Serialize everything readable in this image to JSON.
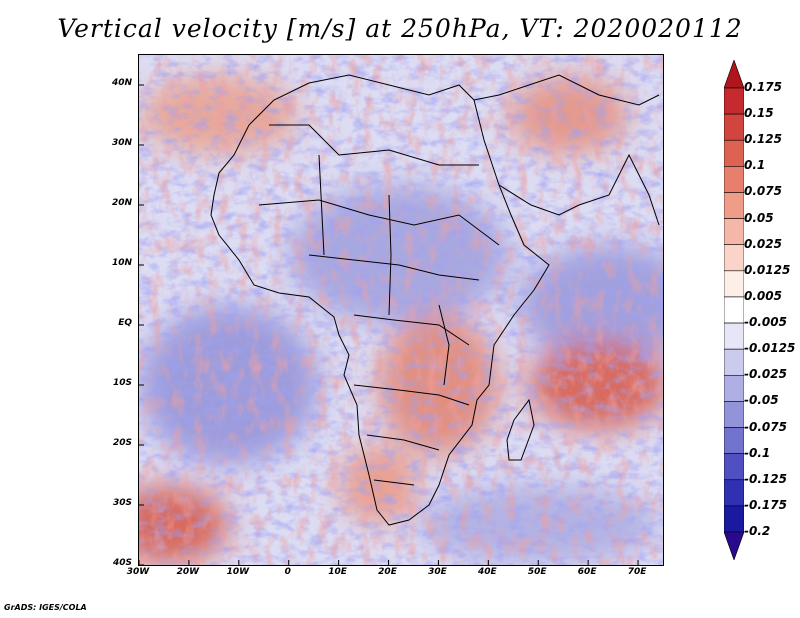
{
  "title": "Vertical velocity [m/s] at 250hPa, VT: 2020020112",
  "credit": "GrADS: IGES/COLA",
  "map": {
    "region": "Africa and surrounding oceans",
    "lat_range": [
      -40,
      45
    ],
    "lon_range": [
      -30,
      75
    ],
    "lat_ticks": [
      "40N",
      "30N",
      "20N",
      "10N",
      "EQ",
      "10S",
      "20S",
      "30S",
      "40S"
    ],
    "lat_values": [
      40,
      30,
      20,
      10,
      0,
      -10,
      -20,
      -30,
      -40
    ],
    "lon_ticks": [
      "30W",
      "20W",
      "10W",
      "0",
      "10E",
      "20E",
      "30E",
      "40E",
      "50E",
      "60E",
      "70E"
    ],
    "lon_values": [
      -30,
      -20,
      -10,
      0,
      10,
      20,
      30,
      40,
      50,
      60,
      70
    ]
  },
  "colorbar": {
    "labels": [
      "0.175",
      "0.15",
      "0.125",
      "0.1",
      "0.075",
      "0.05",
      "0.025",
      "0.0125",
      "0.005",
      "-0.005",
      "-0.0125",
      "-0.025",
      "-0.05",
      "-0.075",
      "-0.1",
      "-0.125",
      "-0.175",
      "-0.2"
    ],
    "colors": [
      "#b0141c",
      "#c42a2e",
      "#d2453f",
      "#de6252",
      "#e77f6c",
      "#ef9c89",
      "#f5b8a8",
      "#fad4c8",
      "#fdeee8",
      "#ffffff",
      "#e6e6f6",
      "#cbcbee",
      "#afafe4",
      "#9393da",
      "#7272cf",
      "#5050c2",
      "#3030b2",
      "#1a1aa0",
      "#2a0a8c"
    ]
  }
}
